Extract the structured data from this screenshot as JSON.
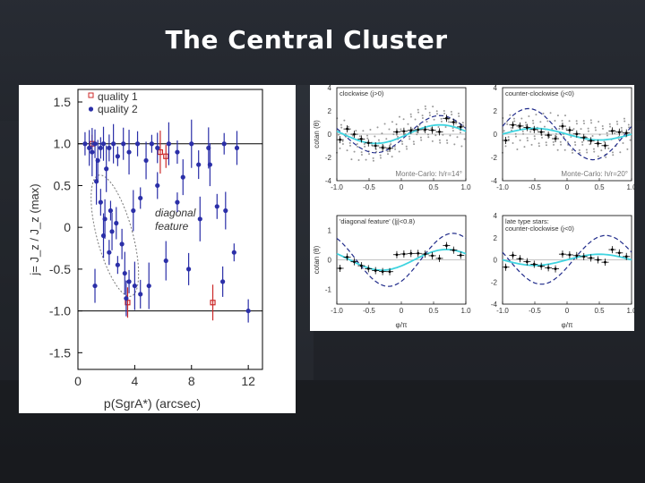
{
  "slide": {
    "title": "The Central Cluster"
  },
  "chart_data": [
    {
      "type": "scatter",
      "title": "",
      "xlabel": "p(SgrA*) (arcsec)",
      "ylabel": "j= J_z / J_z (max)",
      "xlim": [
        0,
        13
      ],
      "ylim": [
        -1.7,
        1.65
      ],
      "xticks": [
        "0",
        "4",
        "8",
        "12"
      ],
      "yticks": [
        "1.5",
        "1.0",
        "0.5",
        "0",
        "-0.5",
        "-1.0",
        "-1.5"
      ],
      "hlines": [
        1.0,
        -1.0
      ],
      "legend": [
        "quality 1",
        "quality 2"
      ],
      "annotation": [
        "diagonal",
        "feature"
      ],
      "series": [
        {
          "name": "quality 1",
          "color": "#cc2a2a",
          "points": [
            [
              1.0,
              1.0
            ],
            [
              3.5,
              -0.9
            ],
            [
              5.8,
              0.9
            ],
            [
              6.2,
              0.85
            ],
            [
              9.5,
              -0.9
            ]
          ]
        },
        {
          "name": "quality 2",
          "color": "#2b2fa8",
          "points": [
            [
              0.5,
              1.0
            ],
            [
              0.8,
              0.95
            ],
            [
              1.0,
              0.9
            ],
            [
              1.2,
              1.0
            ],
            [
              1.4,
              0.8
            ],
            [
              1.6,
              0.95
            ],
            [
              1.8,
              1.0
            ],
            [
              2.0,
              0.7
            ],
            [
              2.2,
              0.95
            ],
            [
              2.5,
              1.0
            ],
            [
              2.8,
              0.85
            ],
            [
              3.2,
              1.0
            ],
            [
              3.6,
              0.9
            ],
            [
              4.2,
              1.0
            ],
            [
              4.8,
              0.8
            ],
            [
              5.2,
              1.0
            ],
            [
              5.6,
              0.95
            ],
            [
              6.4,
              1.0
            ],
            [
              7.0,
              0.9
            ],
            [
              7.4,
              0.6
            ],
            [
              8.0,
              1.0
            ],
            [
              8.5,
              0.75
            ],
            [
              9.2,
              0.95
            ],
            [
              10.3,
              1.0
            ],
            [
              11.2,
              0.95
            ],
            [
              1.3,
              0.55
            ],
            [
              1.6,
              0.3
            ],
            [
              1.9,
              0.1
            ],
            [
              2.3,
              0.2
            ],
            [
              2.7,
              0.05
            ],
            [
              1.8,
              -0.1
            ],
            [
              2.2,
              -0.3
            ],
            [
              2.4,
              -0.05
            ],
            [
              2.8,
              -0.45
            ],
            [
              3.1,
              -0.2
            ],
            [
              3.3,
              -0.55
            ],
            [
              3.6,
              -0.65
            ],
            [
              3.4,
              -0.85
            ],
            [
              4.0,
              -0.7
            ],
            [
              4.4,
              -0.8
            ],
            [
              3.9,
              0.2
            ],
            [
              4.4,
              0.35
            ],
            [
              1.2,
              -0.7
            ],
            [
              5.0,
              -0.7
            ],
            [
              5.6,
              0.5
            ],
            [
              6.2,
              -0.4
            ],
            [
              7.0,
              0.3
            ],
            [
              7.8,
              -0.5
            ],
            [
              8.6,
              0.1
            ],
            [
              9.8,
              0.25
            ],
            [
              10.4,
              0.2
            ],
            [
              11.0,
              -0.3
            ],
            [
              10.2,
              -0.65
            ],
            [
              9.3,
              0.75
            ],
            [
              12.0,
              -1.0
            ]
          ]
        }
      ]
    },
    {
      "type": "scatter",
      "title": "clockwise (j>0)",
      "annotation": "Monte-Carlo: h/r=14°",
      "xlabel": "",
      "ylabel": "cotan (θ)",
      "xlim": [
        -1.0,
        1.0
      ],
      "ylim": [
        -4,
        4
      ],
      "xticks": [
        "-1.0",
        "-0.5",
        "0",
        "0.5",
        "1.0"
      ],
      "yticks": [
        "4",
        "2",
        "0",
        "-2",
        "-4"
      ],
      "curves": [
        "cyan model",
        "blue dashed model"
      ]
    },
    {
      "type": "scatter",
      "title": "counter-clockwise (j<0)",
      "annotation": "Monte-Carlo: h/r=20°",
      "xlabel": "",
      "ylabel": "",
      "xlim": [
        -1.0,
        1.0
      ],
      "ylim": [
        -4,
        4
      ],
      "xticks": [
        "-1.0",
        "-0.5",
        "0",
        "0.5",
        "1.0"
      ],
      "yticks": [
        "4",
        "2",
        "0",
        "-2",
        "-4"
      ]
    },
    {
      "type": "scatter",
      "title": "'diagonal feature' (|j|<0.8)",
      "xlabel": "φ/π",
      "ylabel": "cotan (θ)",
      "xlim": [
        -1.0,
        1.0
      ],
      "ylim": [
        -1.5,
        1.5
      ],
      "xticks": [
        "-1.0",
        "-0.5",
        "0",
        "0.5",
        "1.0"
      ],
      "yticks": [
        "1",
        "0",
        "-1"
      ]
    },
    {
      "type": "scatter",
      "title": "late type stars: counter-clockwise (j<0)",
      "title_lines": [
        "late type stars:",
        "counter-clockwise (j<0)"
      ],
      "xlabel": "φ/π",
      "ylabel": "",
      "xlim": [
        -1.0,
        1.0
      ],
      "ylim": [
        -4,
        4
      ],
      "xticks": [
        "-1.0",
        "-0.5",
        "0",
        "0.5",
        "1.0"
      ],
      "yticks": [
        "4",
        "2",
        "0",
        "-2",
        "-4"
      ]
    }
  ]
}
